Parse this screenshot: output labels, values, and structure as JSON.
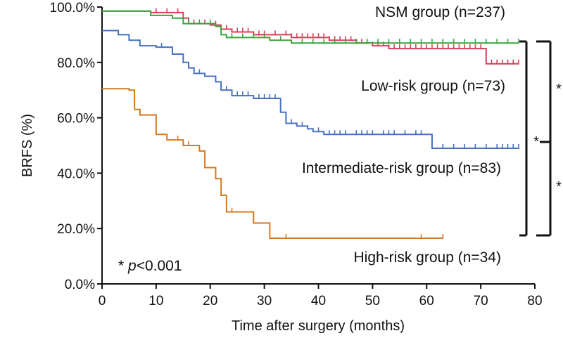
{
  "chart_data": {
    "type": "line",
    "subtype": "kaplan-meier",
    "xlabel": "Time after surgery (months)",
    "ylabel": "BRFS   (%)",
    "xlim": [
      0,
      80
    ],
    "ylim": [
      0,
      100
    ],
    "xticks": [
      0,
      10,
      20,
      30,
      40,
      50,
      60,
      70,
      80
    ],
    "yticks": [
      0,
      20,
      40,
      60,
      80,
      100
    ],
    "ytick_labels": [
      "0.0%",
      "20.0%",
      "40.0%",
      "60.0%",
      "80.0%",
      "100.0%"
    ],
    "grid": false,
    "annotation": {
      "star": "* ",
      "p": "p",
      "rest": "<0.001"
    },
    "brackets": [
      {
        "from": "NSM group (n=237)",
        "to": "High-risk group (n=34)",
        "mark": "*"
      },
      {
        "from": "NSM group (n=237)",
        "to": "Intermediate-risk group (n=83)",
        "mark": "*"
      },
      {
        "from": "Intermediate-risk group (n=83)",
        "to": "High-risk group (n=34)",
        "mark": "*"
      }
    ],
    "series": [
      {
        "name": "NSM group (n=237)",
        "color": "#d6405a",
        "steps": [
          [
            0,
            98.5
          ],
          [
            9,
            98
          ],
          [
            15,
            96
          ],
          [
            16,
            94
          ],
          [
            20,
            93.5
          ],
          [
            22,
            92
          ],
          [
            24,
            91
          ],
          [
            28,
            90
          ],
          [
            35,
            89
          ],
          [
            42,
            88
          ],
          [
            47,
            87
          ],
          [
            50,
            86
          ],
          [
            53,
            85
          ],
          [
            71,
            79.5
          ],
          [
            77,
            79.5
          ]
        ],
        "censors": [
          10,
          12,
          14,
          17,
          19,
          21,
          23,
          25,
          26,
          27,
          29,
          30,
          32,
          34,
          35,
          36,
          37,
          38,
          39,
          40,
          41,
          42,
          43,
          44,
          45,
          46,
          47,
          48,
          49,
          50,
          51,
          52,
          53,
          54,
          55,
          56,
          57,
          58,
          59,
          60,
          61,
          62,
          63,
          64,
          65,
          66,
          67,
          68,
          69,
          70,
          72,
          73,
          74,
          75,
          76,
          77
        ]
      },
      {
        "name": "Low-risk group (n=73)",
        "color": "#37a63a",
        "steps": [
          [
            0,
            98.5
          ],
          [
            9,
            97
          ],
          [
            13,
            96
          ],
          [
            15,
            94
          ],
          [
            21,
            93
          ],
          [
            22,
            90
          ],
          [
            23,
            89
          ],
          [
            31,
            88
          ],
          [
            35,
            87
          ],
          [
            77,
            87
          ]
        ],
        "censors": [
          16,
          18,
          20,
          24,
          26,
          28,
          30,
          33,
          37,
          39,
          41,
          43,
          45,
          47,
          49,
          51,
          53,
          55,
          57,
          59,
          61,
          63,
          65,
          67,
          69,
          71,
          73,
          75,
          77
        ]
      },
      {
        "name": "Intermediate-risk group (n=83)",
        "color": "#4671c1",
        "steps": [
          [
            0,
            91.5
          ],
          [
            3,
            90
          ],
          [
            5,
            88
          ],
          [
            7,
            86
          ],
          [
            10,
            85.5
          ],
          [
            13,
            83
          ],
          [
            15,
            80
          ],
          [
            16,
            78
          ],
          [
            17,
            76
          ],
          [
            19,
            75
          ],
          [
            21,
            73
          ],
          [
            22,
            70
          ],
          [
            24,
            68
          ],
          [
            28,
            67
          ],
          [
            33,
            62
          ],
          [
            34,
            58
          ],
          [
            36,
            57
          ],
          [
            38,
            56
          ],
          [
            39,
            55
          ],
          [
            41,
            54
          ],
          [
            61,
            49
          ],
          [
            77,
            49
          ]
        ],
        "censors": [
          11,
          15,
          18,
          23,
          25,
          26,
          27,
          29,
          30,
          31,
          32,
          35,
          37,
          40,
          42,
          43,
          44,
          45,
          47,
          48,
          49,
          50,
          52,
          53,
          54,
          56,
          58,
          59,
          63,
          65,
          67,
          69,
          71,
          73,
          74,
          75,
          76,
          77
        ]
      },
      {
        "name": "High-risk group (n=34)",
        "color": "#d47a1e",
        "steps": [
          [
            0,
            70.5
          ],
          [
            5,
            70
          ],
          [
            6,
            63
          ],
          [
            7,
            61
          ],
          [
            10,
            54
          ],
          [
            12,
            52
          ],
          [
            15,
            50
          ],
          [
            18,
            48
          ],
          [
            19,
            42
          ],
          [
            21,
            38
          ],
          [
            22,
            32
          ],
          [
            23,
            26
          ],
          [
            28,
            22
          ],
          [
            31,
            16.5
          ],
          [
            63,
            16.5
          ]
        ],
        "censors": [
          14,
          16,
          24,
          34,
          59,
          63
        ]
      }
    ]
  }
}
